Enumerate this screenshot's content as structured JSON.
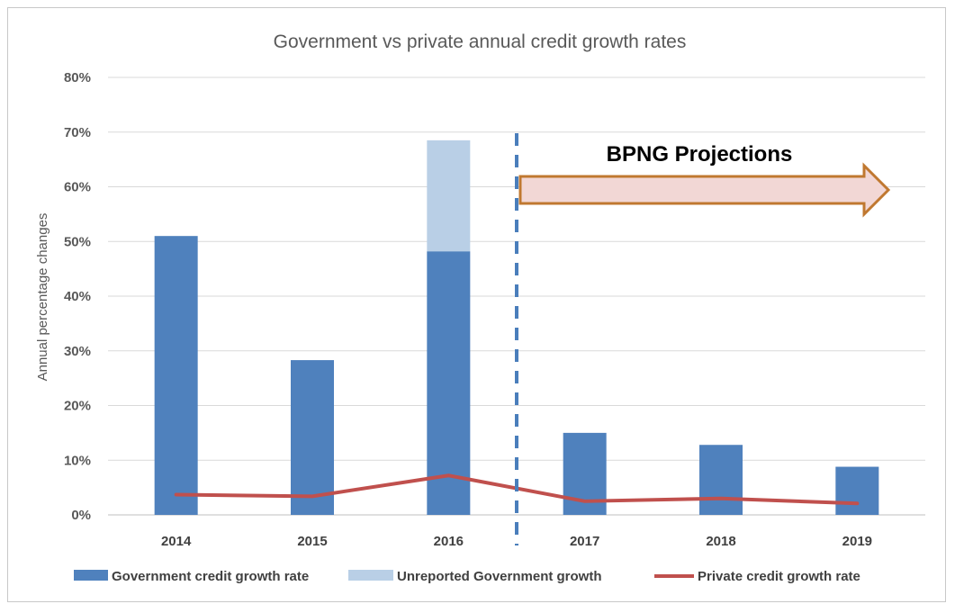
{
  "chart_data": {
    "type": "bar",
    "title": "Government vs private annual credit growth rates",
    "ylabel": "Annual percentage changes",
    "xlabel": "",
    "categories": [
      "2014",
      "2015",
      "2016",
      "2017",
      "2018",
      "2019"
    ],
    "ylim": [
      0,
      80
    ],
    "yticks": [
      "0%",
      "10%",
      "20%",
      "30%",
      "40%",
      "50%",
      "60%",
      "70%",
      "80%"
    ],
    "grid": true,
    "stacked": true,
    "series": [
      {
        "name": "Government credit growth rate",
        "kind": "bar",
        "color": "#4f81bd",
        "values": [
          51,
          28.3,
          48.2,
          15,
          12.8,
          8.8
        ]
      },
      {
        "name": "Unreported Government growth",
        "kind": "bar",
        "color": "#b9cfe6",
        "values": [
          0,
          0,
          20.3,
          0,
          0,
          0
        ]
      },
      {
        "name": "Private credit growth rate",
        "kind": "line",
        "color": "#c0504d",
        "values": [
          3.7,
          3.4,
          7.2,
          2.5,
          3.0,
          2.1
        ]
      }
    ],
    "projection_divider_after": "2016",
    "annotation": {
      "text": "BPNG Projections",
      "arrow_fill": "#f2d7d5",
      "arrow_stroke": "#c07830",
      "divider_color": "#4a7ebb"
    },
    "legend_position": "bottom"
  }
}
